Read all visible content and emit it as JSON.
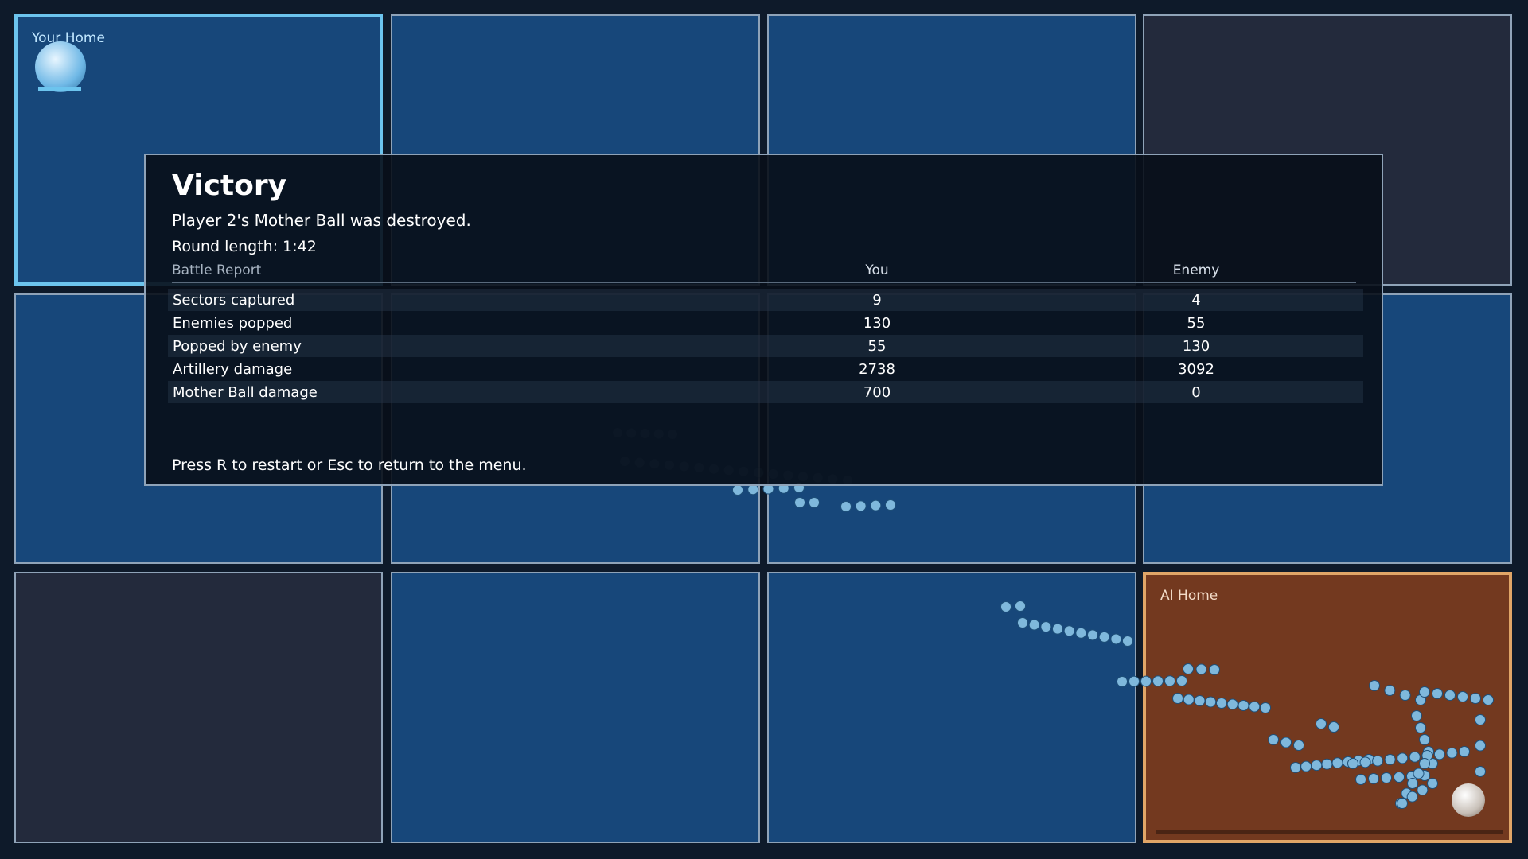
{
  "sectors": {
    "player_home": "Your Home",
    "ai_home": "AI Home"
  },
  "report": {
    "title": "Victory",
    "message": "Player 2's Mother Ball was destroyed.",
    "round_length": "Round length: 1:42",
    "section": "Battle Report",
    "columns": [
      "You",
      "Enemy"
    ],
    "rows": [
      [
        "Sectors captured",
        9,
        4
      ],
      [
        "Enemies popped",
        130,
        55
      ],
      [
        "Popped by enemy",
        55,
        130
      ],
      [
        "Artillery damage",
        2738,
        3092
      ],
      [
        "Mother Ball damage",
        700,
        0
      ]
    ],
    "footer": "Press R to restart or Esc to return to the menu."
  }
}
